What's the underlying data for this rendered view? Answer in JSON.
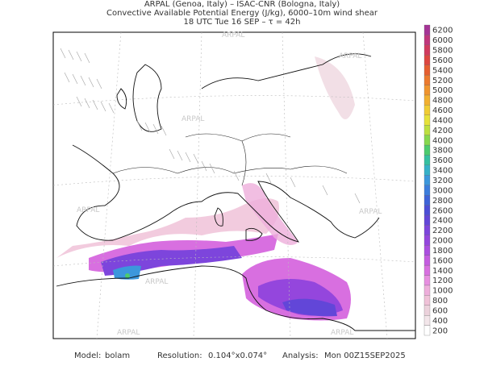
{
  "header": {
    "lines": [
      "ARPAL (Genoa, Italy)  –  ISAC-CNR (Bologna, Italy)",
      "Convective Available Potential Energy (J/kg), 6000–10m wind shear",
      "18 UTC Tue 16 SEP  –  τ = 42h"
    ]
  },
  "watermark": "ARPAL",
  "colorbar": {
    "levels": [
      200,
      400,
      600,
      800,
      1000,
      1200,
      1400,
      1600,
      1800,
      2000,
      2200,
      2400,
      2600,
      2800,
      3000,
      3200,
      3400,
      3600,
      3800,
      4000,
      4200,
      4400,
      4600,
      4800,
      5000,
      5200,
      5400,
      5600,
      5800,
      6000,
      6200
    ],
    "colors": [
      "#ffffff",
      "#f3e6ea",
      "#ecd2dc",
      "#f0c2d8",
      "#eeaedb",
      "#e78ee0",
      "#d86fe0",
      "#c45ce0",
      "#ab4ee0",
      "#9446dd",
      "#7d45dc",
      "#6246d8",
      "#4c4ed6",
      "#3e63d8",
      "#3c7ddc",
      "#3c97dc",
      "#36b1c8",
      "#35c0a0",
      "#4ccb6e",
      "#86d84e",
      "#bde040",
      "#e6e23a",
      "#f0cc34",
      "#f2b030",
      "#f0942e",
      "#ec7a2e",
      "#e65e30",
      "#dd4640",
      "#d03a5e",
      "#c0367c",
      "#a53496"
    ]
  },
  "footer": {
    "model_label": "Model:",
    "model": "bolam",
    "resolution_label": "Resolution:",
    "resolution": "0.104°x0.074°",
    "analysis_label": "Analysis:",
    "analysis": "Mon 00Z15SEP2025"
  }
}
